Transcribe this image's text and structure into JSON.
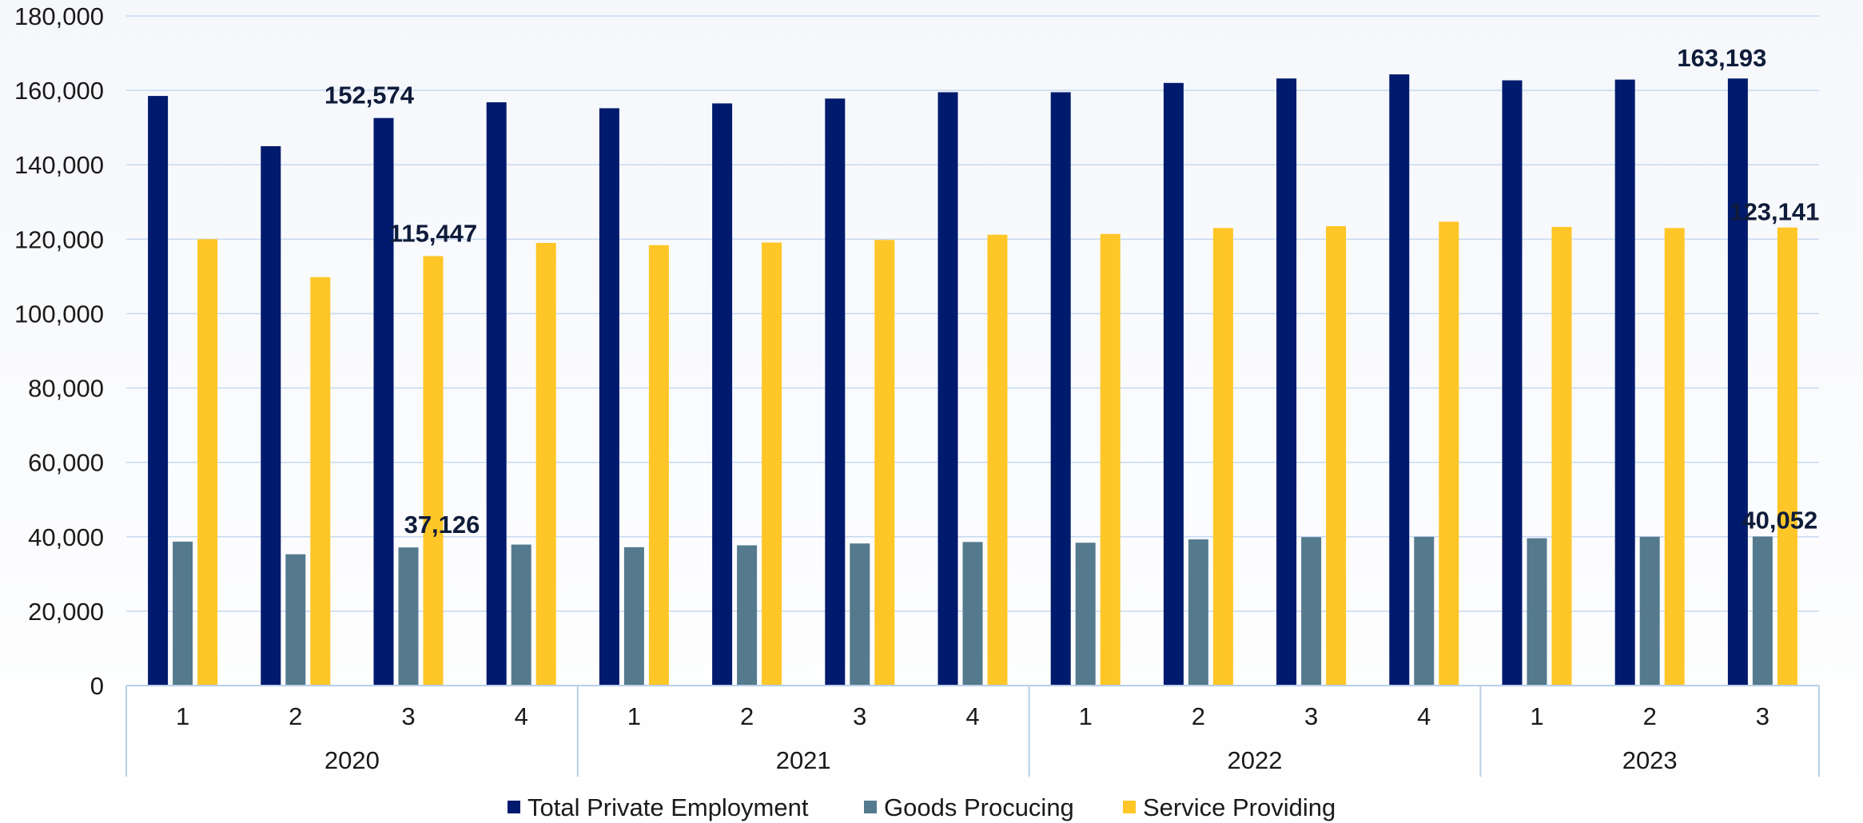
{
  "chart_data": {
    "type": "bar",
    "title": "",
    "xlabel": "",
    "ylabel": "",
    "ylim": [
      0,
      180000
    ],
    "yticks": [
      "0",
      "20,000",
      "40,000",
      "60,000",
      "80,000",
      "100,000",
      "120,000",
      "140,000",
      "160,000",
      "180,000"
    ],
    "grid": true,
    "legend_position": "bottom",
    "groups": [
      {
        "label": "2020",
        "quarters": [
          "1",
          "2",
          "3",
          "4"
        ]
      },
      {
        "label": "2021",
        "quarters": [
          "1",
          "2",
          "3",
          "4"
        ]
      },
      {
        "label": "2022",
        "quarters": [
          "1",
          "2",
          "3",
          "4"
        ]
      },
      {
        "label": "2023",
        "quarters": [
          "1",
          "2",
          "3"
        ]
      }
    ],
    "series": [
      {
        "name": "Total Private Employment",
        "color": "#001a6e",
        "values": [
          158500,
          145000,
          152574,
          156800,
          155200,
          156500,
          157800,
          159500,
          159500,
          162000,
          163200,
          164300,
          162700,
          162900,
          163193
        ]
      },
      {
        "name": "Goods Procucing",
        "color": "#557a8e",
        "values": [
          38700,
          35300,
          37126,
          37900,
          37200,
          37700,
          38200,
          38600,
          38400,
          39300,
          39900,
          40000,
          39600,
          40000,
          40052
        ]
      },
      {
        "name": "Service Providing",
        "color": "#ffc627",
        "values": [
          120000,
          109800,
          115447,
          119000,
          118400,
          119100,
          119800,
          121200,
          121400,
          123000,
          123500,
          124700,
          123300,
          123000,
          123141
        ]
      }
    ],
    "data_labels": [
      {
        "series": 0,
        "index": 2,
        "text": "152,574"
      },
      {
        "series": 2,
        "index": 2,
        "text": "115,447"
      },
      {
        "series": 1,
        "index": 2,
        "text": "37,126"
      },
      {
        "series": 0,
        "index": 14,
        "text": "163,193"
      },
      {
        "series": 2,
        "index": 14,
        "text": "123,141"
      },
      {
        "series": 1,
        "index": 14,
        "text": "40,052"
      }
    ]
  }
}
